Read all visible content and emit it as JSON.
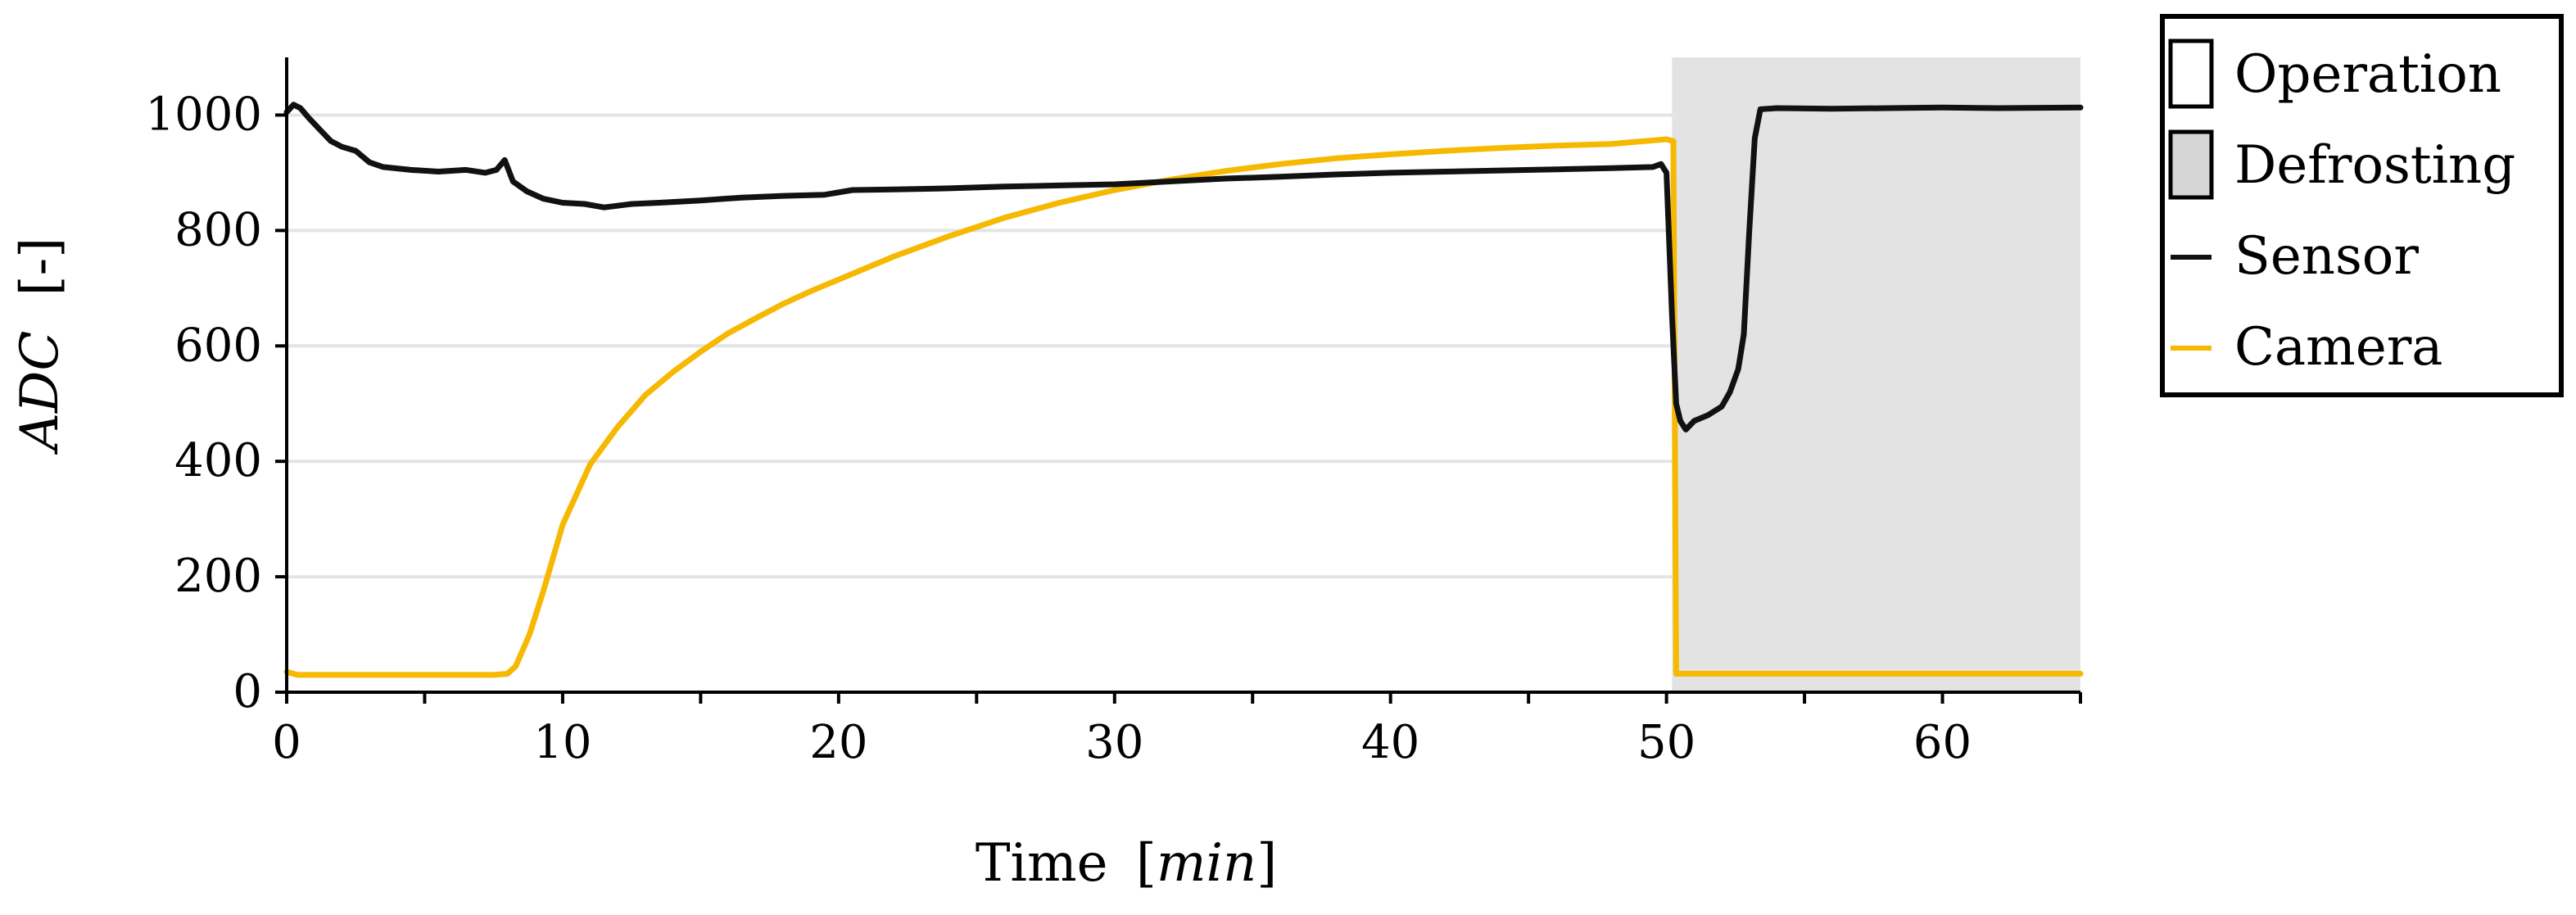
{
  "chart_data": {
    "type": "line",
    "title": "",
    "xlabel": {
      "main": "Time",
      "unit": "min"
    },
    "ylabel": {
      "main": "ADC",
      "unit": "[-]"
    },
    "xlim": [
      0,
      65
    ],
    "ylim": [
      0,
      1100
    ],
    "x_ticks": [
      0,
      10,
      20,
      30,
      40,
      50,
      60
    ],
    "x_minor_step": 5,
    "y_ticks": [
      0,
      200,
      400,
      600,
      800,
      1000
    ],
    "grid": "horizontal",
    "regions": [
      {
        "name": "Operation",
        "x_start": 0,
        "x_end": 50.2,
        "color": "#ffffff"
      },
      {
        "name": "Defrosting",
        "x_start": 50.2,
        "x_end": 65,
        "color": "#e3e3e3"
      }
    ],
    "series": [
      {
        "name": "Sensor",
        "color": "#111111",
        "points": [
          [
            0,
            1005
          ],
          [
            0.25,
            1018
          ],
          [
            0.5,
            1012
          ],
          [
            0.8,
            995
          ],
          [
            1.2,
            975
          ],
          [
            1.6,
            955
          ],
          [
            2.0,
            945
          ],
          [
            2.5,
            938
          ],
          [
            3.0,
            918
          ],
          [
            3.5,
            910
          ],
          [
            4.5,
            905
          ],
          [
            5.5,
            902
          ],
          [
            6.5,
            905
          ],
          [
            7.2,
            900
          ],
          [
            7.6,
            905
          ],
          [
            7.9,
            922
          ],
          [
            8.2,
            885
          ],
          [
            8.7,
            868
          ],
          [
            9.3,
            855
          ],
          [
            10,
            848
          ],
          [
            10.8,
            846
          ],
          [
            11.5,
            840
          ],
          [
            12.5,
            846
          ],
          [
            13.5,
            848
          ],
          [
            15,
            852
          ],
          [
            16.5,
            857
          ],
          [
            18,
            860
          ],
          [
            19.5,
            862
          ],
          [
            20.5,
            870
          ],
          [
            22,
            871
          ],
          [
            24,
            873
          ],
          [
            26,
            876
          ],
          [
            28,
            878
          ],
          [
            30,
            880
          ],
          [
            32,
            885
          ],
          [
            34,
            890
          ],
          [
            36,
            893
          ],
          [
            38,
            897
          ],
          [
            40,
            900
          ],
          [
            42,
            902
          ],
          [
            44,
            904
          ],
          [
            46,
            906
          ],
          [
            48,
            908
          ],
          [
            49.5,
            910
          ],
          [
            49.8,
            915
          ],
          [
            50.0,
            900
          ],
          [
            50.2,
            650
          ],
          [
            50.35,
            500
          ],
          [
            50.5,
            470
          ],
          [
            50.7,
            455
          ],
          [
            51.0,
            470
          ],
          [
            51.5,
            480
          ],
          [
            52.0,
            495
          ],
          [
            52.3,
            520
          ],
          [
            52.6,
            560
          ],
          [
            52.8,
            620
          ],
          [
            53.0,
            800
          ],
          [
            53.2,
            960
          ],
          [
            53.4,
            1010
          ],
          [
            54,
            1012
          ],
          [
            56,
            1011
          ],
          [
            58,
            1012
          ],
          [
            60,
            1013
          ],
          [
            62,
            1012
          ],
          [
            65,
            1013
          ]
        ]
      },
      {
        "name": "Camera",
        "color": "#f6b800",
        "points": [
          [
            0,
            35
          ],
          [
            0.4,
            30
          ],
          [
            2,
            30
          ],
          [
            4,
            30
          ],
          [
            6,
            30
          ],
          [
            7.5,
            30
          ],
          [
            8.0,
            32
          ],
          [
            8.3,
            45
          ],
          [
            8.8,
            100
          ],
          [
            9.3,
            175
          ],
          [
            10,
            290
          ],
          [
            11,
            395
          ],
          [
            12,
            460
          ],
          [
            13,
            515
          ],
          [
            14,
            555
          ],
          [
            15,
            590
          ],
          [
            16,
            622
          ],
          [
            17,
            648
          ],
          [
            18,
            673
          ],
          [
            19,
            695
          ],
          [
            20,
            715
          ],
          [
            22,
            755
          ],
          [
            24,
            790
          ],
          [
            26,
            822
          ],
          [
            28,
            848
          ],
          [
            30,
            870
          ],
          [
            32,
            888
          ],
          [
            34,
            903
          ],
          [
            36,
            915
          ],
          [
            38,
            925
          ],
          [
            40,
            932
          ],
          [
            42,
            938
          ],
          [
            44,
            943
          ],
          [
            46,
            947
          ],
          [
            48,
            950
          ],
          [
            50.0,
            958
          ],
          [
            50.25,
            955
          ],
          [
            50.35,
            32
          ],
          [
            52,
            32
          ],
          [
            55,
            32
          ],
          [
            60,
            32
          ],
          [
            65,
            32
          ]
        ]
      }
    ],
    "legend": {
      "position": "top-right outside",
      "entries": [
        {
          "label": "Operation",
          "kind": "patch",
          "color": "#ffffff"
        },
        {
          "label": "Defrosting",
          "kind": "patch",
          "color": "#d6d6d6"
        },
        {
          "label": "Sensor",
          "kind": "line",
          "color": "#111111"
        },
        {
          "label": "Camera",
          "kind": "line",
          "color": "#f6b800"
        }
      ]
    }
  }
}
